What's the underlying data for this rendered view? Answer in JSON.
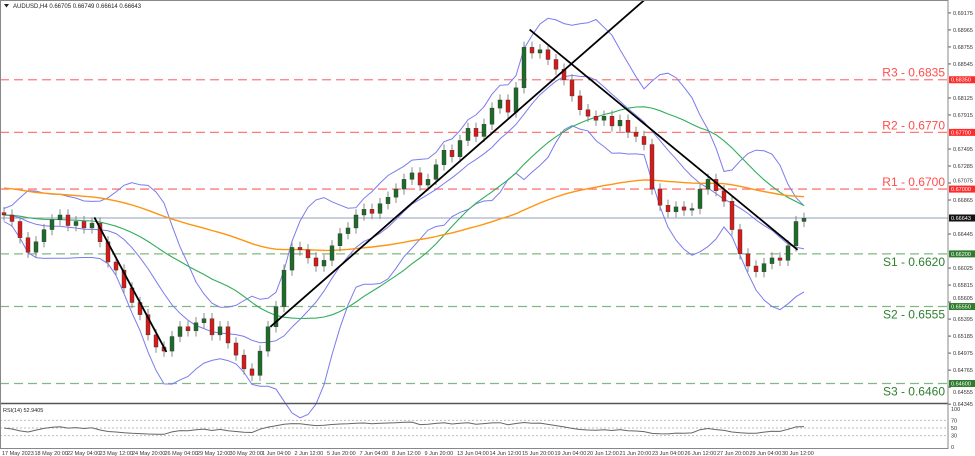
{
  "header": {
    "symbol_info": "AUDUSD,H4  0.66705 0.66749 0.66614 0.66643"
  },
  "rsi": {
    "label": "RSI(14) 52.9405",
    "levels": [
      "100",
      "70",
      "50",
      "30",
      "0"
    ]
  },
  "colors": {
    "bull": "#1e6b2a",
    "bear": "#d41c1c",
    "resistance": "#ff4d4d",
    "support": "#5aa05a",
    "bollinger": "#7b7bef",
    "ma_fast": "#2fae5a",
    "ma_slow": "#ff9411",
    "trendline": "#000000",
    "current_price": "#8fa2b8"
  },
  "chart_data": {
    "type": "candlestick",
    "timeframe": "H4",
    "closes": [
      0.6668,
      0.666,
      0.664,
      0.6622,
      0.6635,
      0.665,
      0.6662,
      0.6668,
      0.6655,
      0.666,
      0.6652,
      0.6658,
      0.6635,
      0.661,
      0.66,
      0.6578,
      0.656,
      0.6545,
      0.652,
      0.6505,
      0.65,
      0.6518,
      0.653,
      0.6525,
      0.6535,
      0.654,
      0.652,
      0.653,
      0.651,
      0.6495,
      0.6478,
      0.647,
      0.65,
      0.653,
      0.6555,
      0.66,
      0.6628,
      0.6625,
      0.6615,
      0.6605,
      0.6612,
      0.663,
      0.6645,
      0.6652,
      0.6668,
      0.6675,
      0.667,
      0.6682,
      0.669,
      0.67,
      0.6712,
      0.672,
      0.6705,
      0.6712,
      0.673,
      0.6748,
      0.674,
      0.676,
      0.6775,
      0.6765,
      0.678,
      0.68,
      0.681,
      0.6795,
      0.6825,
      0.6875,
      0.6868,
      0.6872,
      0.686,
      0.6848,
      0.6835,
      0.6815,
      0.6798,
      0.679,
      0.6785,
      0.679,
      0.6778,
      0.6785,
      0.677,
      0.6765,
      0.6755,
      0.67,
      0.668,
      0.6672,
      0.6678,
      0.6674,
      0.6676,
      0.67,
      0.6712,
      0.6698,
      0.6685,
      0.665,
      0.662,
      0.6605,
      0.6598,
      0.6608,
      0.6615,
      0.6612,
      0.663,
      0.666,
      0.6664
    ],
    "price_ticks": [
      "0.69175",
      "0.68965",
      "0.68755",
      "0.68545",
      "0.68125",
      "0.67915",
      "0.67495",
      "0.67285",
      "0.67075",
      "0.66865",
      "0.66445",
      "0.66025",
      "0.65815",
      "0.65605",
      "0.65395",
      "0.65185",
      "0.64975",
      "0.64765",
      "0.64555",
      "0.64345"
    ],
    "current_price": "0.66643",
    "levels": [
      {
        "name": "R3",
        "label": "R3 - 0.6835",
        "price": 0.6835,
        "tag": "0.68350",
        "kind": "resistance"
      },
      {
        "name": "R2",
        "label": "R2 - 0.6770",
        "price": 0.677,
        "tag": "0.67700",
        "kind": "resistance"
      },
      {
        "name": "R1",
        "label": "R1 - 0.6700",
        "price": 0.67,
        "tag": "0.67000",
        "kind": "resistance"
      },
      {
        "name": "S1",
        "label": "S1 - 0.6620",
        "price": 0.662,
        "tag": "0.66200",
        "kind": "support"
      },
      {
        "name": "S2",
        "label": "S2 - 0.6555",
        "price": 0.6555,
        "tag": "0.65550",
        "kind": "support"
      },
      {
        "name": "S3",
        "label": "S3 - 0.6460",
        "price": 0.646,
        "tag": "0.64600",
        "kind": "support"
      }
    ],
    "trendlines": [
      {
        "from": [
          11.3,
          0.6665
        ],
        "to": [
          20.3,
          0.6499
        ]
      },
      {
        "from": [
          33.3,
          0.653
        ],
        "to": [
          80,
          0.6933
        ]
      },
      {
        "from": [
          65.7,
          0.6897
        ],
        "to": [
          99.2,
          0.6625
        ]
      }
    ],
    "date_labels": [
      "17 May 2023",
      "18 May 20:00",
      "22 May 04:00",
      "23 May 12:00",
      "24 May 20:00",
      "26 May 04:00",
      "29 May 12:00",
      "30 May 20:00",
      "1 Jun 04:00",
      "2 Jun 12:00",
      "5 Jun 20:00",
      "7 Jun 04:00",
      "8 Jun 12:00",
      "9 Jun 20:00",
      "13 Jun 04:00",
      "14 Jun 12:00",
      "15 Jun 20:00",
      "19 Jun 04:00",
      "20 Jun 12:00",
      "21 Jun 20:00",
      "23 Jun 04:00",
      "26 Jun 12:00",
      "27 Jun 20:00",
      "29 Jun 04:00",
      "30 Jun 12:00"
    ]
  }
}
